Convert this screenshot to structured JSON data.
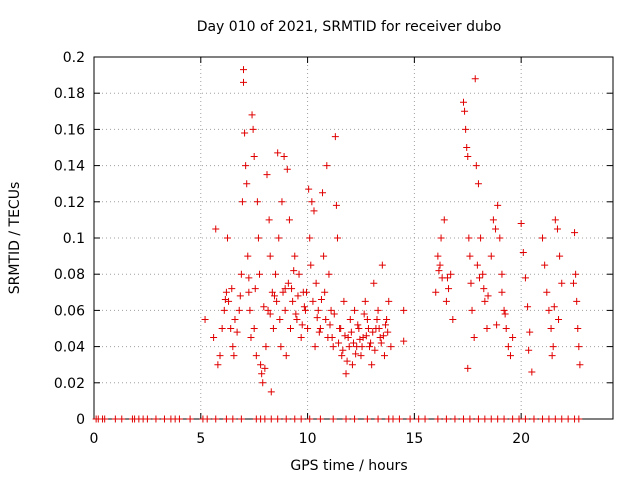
{
  "chart_data": {
    "type": "scatter",
    "title": "Day 010 of 2021, SRMTID for receiver dubo",
    "xlabel": "GPS time / hours",
    "ylabel": "SRMTID / TECUs",
    "xlim": [
      0,
      24.3
    ],
    "ylim": [
      0,
      0.2
    ],
    "grid": true,
    "marker": "+",
    "marker_color": "#e00000",
    "xticks": [
      0,
      5,
      10,
      15,
      20
    ],
    "xtick_labels": [
      "0",
      "5",
      "10",
      "15",
      "20"
    ],
    "yticks": [
      0,
      0.02,
      0.04,
      0.06,
      0.08,
      0.1,
      0.12,
      0.14,
      0.16,
      0.18,
      0.2
    ],
    "ytick_labels": [
      "0",
      "0.02",
      "0.04",
      "0.06",
      "0.08",
      "0.1",
      "0.12",
      "0.14",
      "0.16",
      "0.18",
      "0.2"
    ],
    "series": [
      {
        "name": "SRMTID",
        "points": [
          [
            0.1,
            0
          ],
          [
            0.2,
            0
          ],
          [
            0.4,
            0
          ],
          [
            0.5,
            0
          ],
          [
            1.0,
            0
          ],
          [
            1.3,
            0
          ],
          [
            1.8,
            0
          ],
          [
            1.9,
            0
          ],
          [
            2.1,
            0
          ],
          [
            2.3,
            0
          ],
          [
            2.5,
            0
          ],
          [
            2.9,
            0
          ],
          [
            3.3,
            0
          ],
          [
            3.6,
            0
          ],
          [
            3.8,
            0
          ],
          [
            4.0,
            0
          ],
          [
            4.5,
            0
          ],
          [
            5.1,
            0
          ],
          [
            5.3,
            0
          ],
          [
            5.7,
            0
          ],
          [
            6.2,
            0
          ],
          [
            6.5,
            0
          ],
          [
            6.9,
            0
          ],
          [
            7.6,
            0
          ],
          [
            7.8,
            0
          ],
          [
            8.0,
            0
          ],
          [
            8.3,
            0
          ],
          [
            8.6,
            0
          ],
          [
            9.0,
            0
          ],
          [
            9.4,
            0
          ],
          [
            9.7,
            0
          ],
          [
            10.1,
            0
          ],
          [
            10.6,
            0
          ],
          [
            11.2,
            0
          ],
          [
            11.8,
            0
          ],
          [
            12.2,
            0
          ],
          [
            12.8,
            0
          ],
          [
            13.3,
            0
          ],
          [
            13.8,
            0
          ],
          [
            14.0,
            0
          ],
          [
            14.3,
            0
          ],
          [
            14.8,
            0
          ],
          [
            15.2,
            0
          ],
          [
            15.5,
            0
          ],
          [
            16.1,
            0
          ],
          [
            16.5,
            0
          ],
          [
            16.9,
            0
          ],
          [
            17.3,
            0
          ],
          [
            17.6,
            0
          ],
          [
            18.0,
            0
          ],
          [
            18.3,
            0
          ],
          [
            18.6,
            0
          ],
          [
            18.9,
            0
          ],
          [
            19.2,
            0
          ],
          [
            19.6,
            0
          ],
          [
            19.9,
            0
          ],
          [
            20.2,
            0
          ],
          [
            20.6,
            0
          ],
          [
            21.0,
            0
          ],
          [
            21.3,
            0
          ],
          [
            21.6,
            0
          ],
          [
            21.9,
            0
          ],
          [
            22.2,
            0
          ],
          [
            22.5,
            0
          ],
          [
            22.7,
            0
          ],
          [
            5.2,
            0.055
          ],
          [
            5.6,
            0.045
          ],
          [
            5.7,
            0.105
          ],
          [
            5.8,
            0.03
          ],
          [
            5.9,
            0.035
          ],
          [
            6.0,
            0.05
          ],
          [
            6.1,
            0.06
          ],
          [
            6.2,
            0.07
          ],
          [
            6.25,
            0.1
          ],
          [
            6.3,
            0.065
          ],
          [
            6.4,
            0.05
          ],
          [
            6.5,
            0.04
          ],
          [
            6.55,
            0.035
          ],
          [
            6.6,
            0.055
          ],
          [
            6.7,
            0.048
          ],
          [
            6.8,
            0.06
          ],
          [
            6.9,
            0.08
          ],
          [
            6.95,
            0.12
          ],
          [
            7.0,
            0.193
          ],
          [
            7.0,
            0.186
          ],
          [
            7.05,
            0.158
          ],
          [
            7.1,
            0.14
          ],
          [
            7.15,
            0.13
          ],
          [
            7.2,
            0.09
          ],
          [
            7.25,
            0.07
          ],
          [
            7.3,
            0.06
          ],
          [
            7.35,
            0.045
          ],
          [
            7.4,
            0.168
          ],
          [
            7.45,
            0.16
          ],
          [
            7.5,
            0.145
          ],
          [
            7.5,
            0.05
          ],
          [
            7.6,
            0.035
          ],
          [
            7.65,
            0.12
          ],
          [
            7.7,
            0.1
          ],
          [
            7.75,
            0.08
          ],
          [
            7.8,
            0.03
          ],
          [
            7.85,
            0.025
          ],
          [
            7.9,
            0.02
          ],
          [
            8.0,
            0.028
          ],
          [
            8.05,
            0.04
          ],
          [
            8.1,
            0.135
          ],
          [
            8.15,
            0.06
          ],
          [
            8.2,
            0.11
          ],
          [
            8.25,
            0.09
          ],
          [
            8.3,
            0.015
          ],
          [
            8.35,
            0.07
          ],
          [
            8.4,
            0.05
          ],
          [
            8.5,
            0.08
          ],
          [
            8.55,
            0.065
          ],
          [
            8.6,
            0.147
          ],
          [
            8.65,
            0.1
          ],
          [
            8.7,
            0.055
          ],
          [
            8.75,
            0.04
          ],
          [
            8.8,
            0.12
          ],
          [
            8.85,
            0.07
          ],
          [
            8.9,
            0.145
          ],
          [
            8.95,
            0.06
          ],
          [
            9.0,
            0.035
          ],
          [
            9.05,
            0.138
          ],
          [
            9.1,
            0.075
          ],
          [
            9.15,
            0.11
          ],
          [
            9.2,
            0.05
          ],
          [
            9.3,
            0.065
          ],
          [
            9.4,
            0.09
          ],
          [
            9.5,
            0.055
          ],
          [
            9.6,
            0.08
          ],
          [
            9.7,
            0.045
          ],
          [
            9.8,
            0.07
          ],
          [
            9.9,
            0.06
          ],
          [
            10.0,
            0.05
          ],
          [
            10.05,
            0.127
          ],
          [
            10.1,
            0.1
          ],
          [
            10.15,
            0.085
          ],
          [
            10.2,
            0.12
          ],
          [
            10.25,
            0.065
          ],
          [
            10.3,
            0.115
          ],
          [
            10.35,
            0.04
          ],
          [
            10.4,
            0.075
          ],
          [
            10.5,
            0.06
          ],
          [
            10.6,
            0.05
          ],
          [
            10.7,
            0.125
          ],
          [
            10.75,
            0.09
          ],
          [
            10.8,
            0.07
          ],
          [
            10.85,
            0.055
          ],
          [
            10.9,
            0.14
          ],
          [
            10.95,
            0.045
          ],
          [
            11.0,
            0.08
          ],
          [
            11.1,
            0.06
          ],
          [
            11.2,
            0.04
          ],
          [
            11.3,
            0.156
          ],
          [
            11.35,
            0.118
          ],
          [
            11.4,
            0.1
          ],
          [
            11.5,
            0.05
          ],
          [
            11.6,
            0.035
          ],
          [
            11.7,
            0.065
          ],
          [
            11.8,
            0.025
          ],
          [
            11.9,
            0.045
          ],
          [
            12.0,
            0.055
          ],
          [
            12.1,
            0.03
          ],
          [
            12.2,
            0.06
          ],
          [
            12.3,
            0.04
          ],
          [
            12.4,
            0.05
          ],
          [
            12.5,
            0.035
          ],
          [
            12.6,
            0.045
          ],
          [
            12.7,
            0.065
          ],
          [
            12.8,
            0.055
          ],
          [
            12.9,
            0.04
          ],
          [
            13.0,
            0.03
          ],
          [
            13.1,
            0.075
          ],
          [
            13.2,
            0.05
          ],
          [
            13.3,
            0.06
          ],
          [
            13.4,
            0.045
          ],
          [
            13.5,
            0.085
          ],
          [
            13.6,
            0.035
          ],
          [
            13.7,
            0.055
          ],
          [
            13.8,
            0.065
          ],
          [
            13.9,
            0.04
          ],
          [
            9.25,
            0.072
          ],
          [
            9.45,
            0.058
          ],
          [
            9.55,
            0.068
          ],
          [
            9.75,
            0.052
          ],
          [
            9.85,
            0.062
          ],
          [
            9.95,
            0.07
          ],
          [
            10.45,
            0.056
          ],
          [
            10.55,
            0.048
          ],
          [
            10.65,
            0.066
          ],
          [
            11.05,
            0.052
          ],
          [
            11.15,
            0.045
          ],
          [
            11.25,
            0.058
          ],
          [
            11.45,
            0.042
          ],
          [
            11.55,
            0.05
          ],
          [
            11.65,
            0.038
          ],
          [
            11.75,
            0.046
          ],
          [
            11.85,
            0.032
          ],
          [
            11.95,
            0.04
          ],
          [
            12.05,
            0.048
          ],
          [
            12.15,
            0.042
          ],
          [
            12.25,
            0.036
          ],
          [
            12.35,
            0.052
          ],
          [
            12.45,
            0.044
          ],
          [
            12.55,
            0.04
          ],
          [
            12.65,
            0.058
          ],
          [
            12.75,
            0.046
          ],
          [
            12.85,
            0.05
          ],
          [
            12.95,
            0.042
          ],
          [
            13.05,
            0.048
          ],
          [
            13.15,
            0.038
          ],
          [
            13.25,
            0.055
          ],
          [
            13.35,
            0.05
          ],
          [
            13.45,
            0.042
          ],
          [
            13.55,
            0.046
          ],
          [
            13.65,
            0.052
          ],
          [
            13.75,
            0.048
          ],
          [
            8.45,
            0.068
          ],
          [
            8.95,
            0.072
          ],
          [
            9.35,
            0.082
          ],
          [
            8.25,
            0.058
          ],
          [
            7.95,
            0.062
          ],
          [
            7.55,
            0.072
          ],
          [
            7.25,
            0.078
          ],
          [
            6.85,
            0.068
          ],
          [
            6.45,
            0.072
          ],
          [
            6.15,
            0.066
          ],
          [
            14.5,
            0.043
          ],
          [
            14.5,
            0.06
          ],
          [
            16.0,
            0.07
          ],
          [
            16.1,
            0.09
          ],
          [
            16.2,
            0.085
          ],
          [
            16.3,
            0.078
          ],
          [
            16.4,
            0.11
          ],
          [
            16.5,
            0.065
          ],
          [
            16.6,
            0.072
          ],
          [
            16.7,
            0.08
          ],
          [
            16.8,
            0.055
          ],
          [
            17.3,
            0.175
          ],
          [
            17.35,
            0.17
          ],
          [
            17.4,
            0.16
          ],
          [
            17.45,
            0.15
          ],
          [
            17.5,
            0.145
          ],
          [
            17.55,
            0.1
          ],
          [
            17.6,
            0.09
          ],
          [
            17.7,
            0.06
          ],
          [
            17.8,
            0.045
          ],
          [
            17.85,
            0.188
          ],
          [
            17.9,
            0.14
          ],
          [
            18.0,
            0.13
          ],
          [
            18.1,
            0.1
          ],
          [
            18.2,
            0.08
          ],
          [
            18.3,
            0.065
          ],
          [
            18.4,
            0.05
          ],
          [
            17.5,
            0.028
          ],
          [
            18.6,
            0.09
          ],
          [
            18.7,
            0.11
          ],
          [
            18.8,
            0.105
          ],
          [
            18.9,
            0.118
          ],
          [
            19.0,
            0.1
          ],
          [
            19.1,
            0.08
          ],
          [
            19.2,
            0.06
          ],
          [
            19.3,
            0.05
          ],
          [
            19.4,
            0.04
          ],
          [
            19.5,
            0.035
          ],
          [
            19.6,
            0.045
          ],
          [
            19.1,
            0.07
          ],
          [
            18.85,
            0.052
          ],
          [
            19.25,
            0.058
          ],
          [
            20.0,
            0.108
          ],
          [
            20.1,
            0.092
          ],
          [
            20.2,
            0.078
          ],
          [
            20.3,
            0.062
          ],
          [
            20.4,
            0.048
          ],
          [
            20.5,
            0.026
          ],
          [
            20.35,
            0.038
          ],
          [
            21.0,
            0.1
          ],
          [
            21.1,
            0.085
          ],
          [
            21.2,
            0.07
          ],
          [
            21.3,
            0.06
          ],
          [
            21.4,
            0.05
          ],
          [
            21.5,
            0.04
          ],
          [
            21.6,
            0.11
          ],
          [
            21.7,
            0.105
          ],
          [
            21.8,
            0.09
          ],
          [
            21.9,
            0.075
          ],
          [
            21.45,
            0.035
          ],
          [
            21.55,
            0.062
          ],
          [
            21.75,
            0.055
          ],
          [
            22.5,
            0.103
          ],
          [
            22.55,
            0.08
          ],
          [
            22.6,
            0.065
          ],
          [
            22.65,
            0.05
          ],
          [
            22.7,
            0.04
          ],
          [
            22.75,
            0.03
          ],
          [
            22.45,
            0.075
          ],
          [
            16.25,
            0.1
          ],
          [
            16.55,
            0.078
          ],
          [
            16.15,
            0.082
          ],
          [
            17.65,
            0.075
          ],
          [
            17.95,
            0.085
          ],
          [
            18.05,
            0.078
          ],
          [
            18.25,
            0.072
          ],
          [
            18.45,
            0.068
          ]
        ]
      }
    ]
  }
}
